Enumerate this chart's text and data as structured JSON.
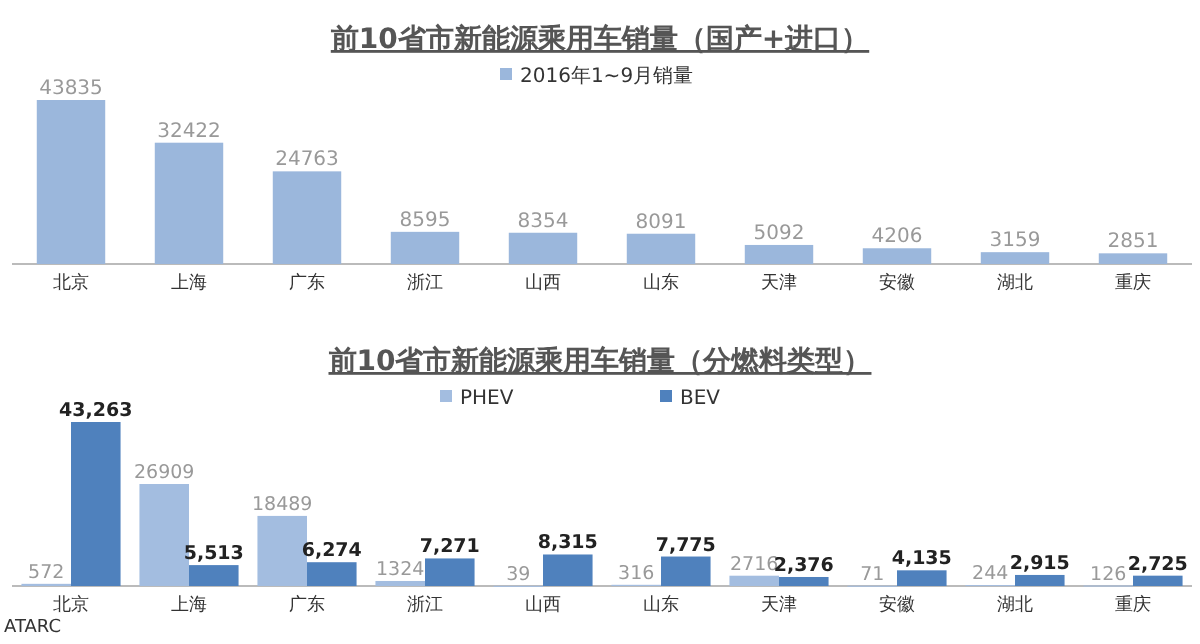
{
  "chart_data": [
    {
      "type": "bar",
      "title": "前10省市新能源乘用车销量（国产+进口）",
      "categories": [
        "北京",
        "上海",
        "广东",
        "浙江",
        "山西",
        "山东",
        "天津",
        "安徽",
        "湖北",
        "重庆"
      ],
      "series": [
        {
          "name": "2016年1~9月销量",
          "color": "#9bb7dc",
          "values": [
            43835,
            32422,
            24763,
            8595,
            8354,
            8091,
            5092,
            4206,
            3159,
            2851
          ]
        }
      ],
      "data_labels": true,
      "legend": "top"
    },
    {
      "type": "bar",
      "title": "前10省市新能源乘用车销量（分燃料类型）",
      "categories": [
        "北京",
        "上海",
        "广东",
        "浙江",
        "山西",
        "山东",
        "天津",
        "安徽",
        "湖北",
        "重庆"
      ],
      "series": [
        {
          "name": "PHEV",
          "color": "#a3bde0",
          "values": [
            572,
            26909,
            18489,
            1324,
            39,
            316,
            2716,
            71,
            244,
            126
          ],
          "value_labels": [
            "572",
            "26909",
            "18489",
            "1324",
            "39",
            "316",
            "2716",
            "71",
            "244",
            "126"
          ]
        },
        {
          "name": "BEV",
          "color": "#4f81bd",
          "values": [
            43263,
            5513,
            6274,
            7271,
            8315,
            7775,
            2376,
            4135,
            2915,
            2725
          ],
          "value_labels": [
            "43,263",
            "5,513",
            "6,274",
            "7,271",
            "8,315",
            "7,775",
            "2,376",
            "4,135",
            "2,915",
            "2,725"
          ]
        }
      ],
      "legend": "top",
      "annotations": [
        "ATARC"
      ]
    }
  ]
}
